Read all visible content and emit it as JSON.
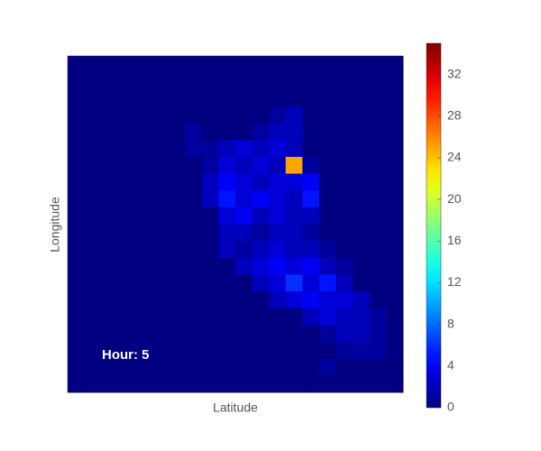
{
  "chart_data": {
    "type": "heatmap",
    "xlabel": "Latitude",
    "ylabel": "Longitude",
    "annotation": "Hour: 5",
    "colormap": "jet",
    "zlim": [
      0,
      35
    ],
    "zticks": [
      0,
      4,
      8,
      12,
      16,
      20,
      24,
      28,
      32
    ],
    "z": [
      [
        0,
        0,
        0,
        0,
        0,
        0,
        0,
        0,
        0,
        0,
        0,
        0,
        0,
        0,
        0,
        0,
        0,
        0,
        0,
        0
      ],
      [
        0,
        0,
        0,
        0,
        0,
        0,
        0,
        0,
        0,
        0,
        0,
        0,
        0,
        0,
        0,
        0,
        0,
        0,
        0,
        0
      ],
      [
        0,
        0,
        0,
        0,
        0,
        0,
        0,
        0,
        0,
        0,
        0,
        0,
        0,
        0,
        0,
        0,
        0,
        0,
        0,
        0
      ],
      [
        0,
        0,
        0,
        0,
        0,
        0,
        0,
        0,
        0,
        0,
        0,
        0,
        1,
        2,
        0,
        0,
        0,
        0,
        0,
        0
      ],
      [
        0,
        0,
        0,
        0,
        0,
        0,
        0,
        1,
        0,
        0,
        0,
        1,
        2,
        2,
        0,
        0,
        0,
        0,
        0,
        0
      ],
      [
        0,
        0,
        0,
        0,
        0,
        0,
        0,
        1,
        1,
        2,
        3,
        2,
        3,
        2,
        0,
        0,
        0,
        0,
        0,
        0
      ],
      [
        0,
        0,
        0,
        0,
        0,
        0,
        0,
        0,
        1,
        3,
        2,
        3,
        2,
        25,
        1,
        0,
        0,
        0,
        0,
        0
      ],
      [
        0,
        0,
        0,
        0,
        0,
        0,
        0,
        0,
        2,
        4,
        3,
        2,
        3,
        3,
        4,
        0,
        0,
        0,
        0,
        0
      ],
      [
        0,
        0,
        0,
        0,
        0,
        0,
        0,
        0,
        2,
        5,
        3,
        4,
        3,
        2,
        5,
        0,
        0,
        0,
        0,
        0
      ],
      [
        0,
        0,
        0,
        0,
        0,
        0,
        0,
        0,
        0,
        3,
        4,
        2,
        3,
        2,
        2,
        0,
        0,
        0,
        0,
        0
      ],
      [
        0,
        0,
        0,
        0,
        0,
        0,
        0,
        0,
        0,
        2,
        2,
        1,
        2,
        2,
        1,
        0,
        0,
        0,
        0,
        0
      ],
      [
        0,
        0,
        0,
        0,
        0,
        0,
        0,
        0,
        0,
        2,
        1,
        2,
        3,
        2,
        2,
        1,
        0,
        0,
        0,
        0
      ],
      [
        0,
        0,
        0,
        0,
        0,
        0,
        0,
        0,
        0,
        0,
        2,
        3,
        4,
        3,
        4,
        2,
        1,
        0,
        0,
        0
      ],
      [
        0,
        0,
        0,
        0,
        0,
        0,
        0,
        0,
        0,
        0,
        0,
        2,
        3,
        6,
        3,
        5,
        2,
        0,
        0,
        0
      ],
      [
        0,
        0,
        0,
        0,
        0,
        0,
        0,
        0,
        0,
        0,
        0,
        0,
        2,
        3,
        4,
        3,
        3,
        2,
        0,
        0
      ],
      [
        0,
        0,
        0,
        0,
        0,
        0,
        0,
        0,
        0,
        0,
        0,
        0,
        0,
        0,
        2,
        3,
        2,
        2,
        1,
        0
      ],
      [
        0,
        0,
        0,
        0,
        0,
        0,
        0,
        0,
        0,
        0,
        0,
        0,
        0,
        0,
        0,
        1,
        2,
        2,
        1,
        0
      ],
      [
        0,
        0,
        0,
        0,
        0,
        0,
        0,
        0,
        0,
        0,
        0,
        0,
        0,
        0,
        0,
        0,
        1,
        1,
        1,
        0
      ],
      [
        0,
        0,
        0,
        0,
        0,
        0,
        0,
        0,
        0,
        0,
        0,
        0,
        0,
        0,
        0,
        1,
        0,
        0,
        0,
        0
      ],
      [
        0,
        0,
        0,
        0,
        0,
        0,
        0,
        0,
        0,
        0,
        0,
        0,
        0,
        0,
        0,
        0,
        0,
        0,
        0,
        0
      ]
    ]
  }
}
